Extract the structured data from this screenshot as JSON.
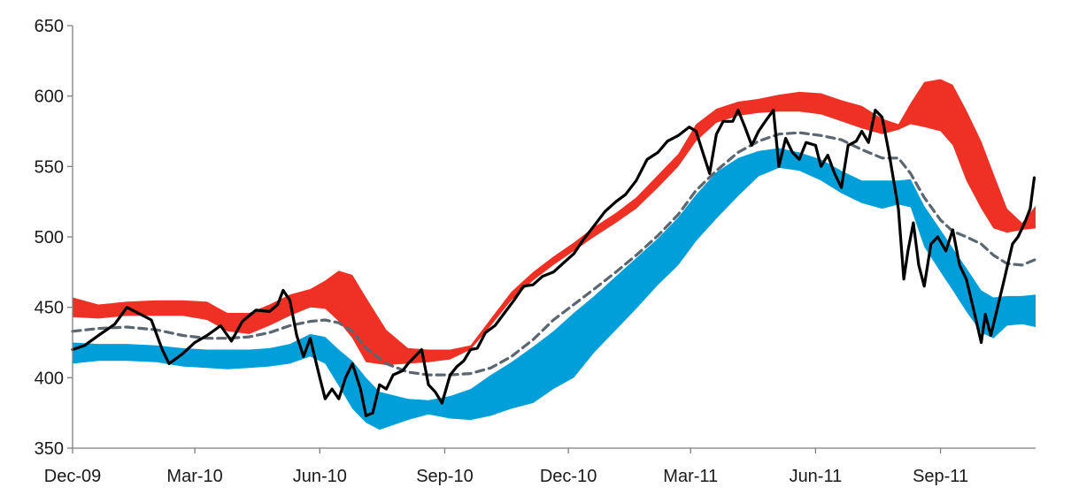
{
  "chart_data": {
    "type": "line",
    "title": "",
    "xlabel": "",
    "ylabel": "",
    "ylim": [
      350,
      650
    ],
    "yticks": [
      350,
      400,
      450,
      500,
      550,
      600,
      650
    ],
    "xlim": [
      "2009-12-01",
      "2011-11-10"
    ],
    "xticks": [
      {
        "date": "2009-12-01",
        "label": "Dec-09"
      },
      {
        "date": "2010-03-01",
        "label": "Mar-10"
      },
      {
        "date": "2010-06-01",
        "label": "Jun-10"
      },
      {
        "date": "2010-09-01",
        "label": "Sep-10"
      },
      {
        "date": "2010-12-01",
        "label": "Dec-10"
      },
      {
        "date": "2011-03-01",
        "label": "Mar-11"
      },
      {
        "date": "2011-06-01",
        "label": "Jun-11"
      },
      {
        "date": "2011-09-01",
        "label": "Sep-11"
      }
    ],
    "grid": false,
    "legend": "none",
    "colors": {
      "upper_band": "#ee3124",
      "lower_band": "#009fda",
      "moving_average": "#5b6670",
      "price": "#000000",
      "axis": "#7f7f7f"
    },
    "series": [
      {
        "role": "upper_band",
        "style": "filled band",
        "x": [
          "2009-12-01",
          "2009-12-20",
          "2010-01-10",
          "2010-02-01",
          "2010-02-20",
          "2010-03-10",
          "2010-03-25",
          "2010-04-10",
          "2010-04-25",
          "2010-05-10",
          "2010-05-25",
          "2010-06-05",
          "2010-06-15",
          "2010-06-25",
          "2010-07-05",
          "2010-07-20",
          "2010-08-05",
          "2010-08-20",
          "2010-09-05",
          "2010-09-20",
          "2010-10-05",
          "2010-10-20",
          "2010-11-05",
          "2010-11-20",
          "2010-12-05",
          "2010-12-20",
          "2011-01-05",
          "2011-01-20",
          "2011-02-05",
          "2011-02-20",
          "2011-03-05",
          "2011-03-20",
          "2011-04-05",
          "2011-04-20",
          "2011-05-05",
          "2011-05-20",
          "2011-06-05",
          "2011-06-20",
          "2011-07-05",
          "2011-07-20",
          "2011-08-01",
          "2011-08-10",
          "2011-08-20",
          "2011-09-01",
          "2011-09-10",
          "2011-09-20",
          "2011-10-01",
          "2011-10-10",
          "2011-10-20",
          "2011-10-31",
          "2011-11-10"
        ],
        "upper": [
          457,
          452,
          454,
          455,
          455,
          454,
          446,
          446,
          452,
          459,
          463,
          469,
          476,
          473,
          457,
          434,
          421,
          420,
          420,
          423,
          442,
          461,
          475,
          486,
          496,
          507,
          517,
          528,
          544,
          559,
          580,
          591,
          596,
          598,
          601,
          603,
          602,
          597,
          593,
          584,
          580,
          595,
          610,
          612,
          608,
          590,
          568,
          545,
          520,
          510,
          522
        ],
        "lower": [
          443,
          442,
          444,
          444,
          444,
          441,
          433,
          431,
          437,
          444,
          450,
          449,
          440,
          428,
          411,
          409,
          410,
          411,
          413,
          420,
          437,
          455,
          469,
          480,
          490,
          500,
          510,
          520,
          535,
          550,
          568,
          581,
          586,
          588,
          589,
          589,
          587,
          582,
          577,
          573,
          576,
          580,
          578,
          575,
          565,
          540,
          520,
          506,
          503,
          505,
          506
        ]
      },
      {
        "role": "lower_band",
        "style": "filled band",
        "x": [
          "2009-12-01",
          "2009-12-20",
          "2010-01-10",
          "2010-02-01",
          "2010-02-20",
          "2010-03-10",
          "2010-03-25",
          "2010-04-10",
          "2010-04-25",
          "2010-05-10",
          "2010-05-25",
          "2010-06-05",
          "2010-06-15",
          "2010-06-25",
          "2010-07-05",
          "2010-07-15",
          "2010-08-05",
          "2010-08-20",
          "2010-09-05",
          "2010-09-20",
          "2010-10-05",
          "2010-10-20",
          "2010-11-05",
          "2010-11-20",
          "2010-12-05",
          "2010-12-20",
          "2011-01-05",
          "2011-01-20",
          "2011-02-05",
          "2011-02-20",
          "2011-03-05",
          "2011-03-20",
          "2011-04-05",
          "2011-04-20",
          "2011-05-05",
          "2011-05-20",
          "2011-06-05",
          "2011-06-20",
          "2011-07-05",
          "2011-07-20",
          "2011-08-01",
          "2011-08-10",
          "2011-08-20",
          "2011-09-01",
          "2011-09-10",
          "2011-09-20",
          "2011-10-01",
          "2011-10-10",
          "2011-10-20",
          "2011-10-31",
          "2011-11-10"
        ],
        "upper": [
          425,
          424,
          424,
          423,
          421,
          420,
          420,
          420,
          421,
          424,
          431,
          429,
          420,
          412,
          400,
          390,
          385,
          384,
          387,
          392,
          402,
          411,
          422,
          433,
          446,
          458,
          472,
          485,
          499,
          514,
          530,
          546,
          556,
          561,
          563,
          560,
          555,
          547,
          540,
          540,
          540,
          541,
          522,
          505,
          492,
          478,
          462,
          457,
          458,
          458,
          459
        ],
        "lower": [
          410,
          412,
          412,
          411,
          408,
          407,
          406,
          407,
          408,
          410,
          415,
          410,
          394,
          378,
          368,
          363,
          370,
          374,
          371,
          370,
          373,
          378,
          382,
          392,
          400,
          418,
          434,
          449,
          466,
          480,
          497,
          513,
          529,
          543,
          549,
          547,
          540,
          531,
          524,
          520,
          523,
          521,
          493,
          475,
          462,
          447,
          432,
          428,
          437,
          438,
          436
        ]
      },
      {
        "role": "moving_average",
        "style": "dashed line",
        "x": [
          "2009-12-01",
          "2009-12-20",
          "2010-01-10",
          "2010-02-01",
          "2010-02-20",
          "2010-03-10",
          "2010-03-25",
          "2010-04-10",
          "2010-04-25",
          "2010-05-10",
          "2010-05-25",
          "2010-06-05",
          "2010-06-15",
          "2010-06-25",
          "2010-07-05",
          "2010-07-20",
          "2010-08-05",
          "2010-08-20",
          "2010-09-05",
          "2010-09-20",
          "2010-10-05",
          "2010-10-20",
          "2010-11-05",
          "2010-11-20",
          "2010-12-05",
          "2010-12-20",
          "2011-01-05",
          "2011-01-20",
          "2011-02-05",
          "2011-02-20",
          "2011-03-05",
          "2011-03-20",
          "2011-04-05",
          "2011-04-20",
          "2011-05-05",
          "2011-05-20",
          "2011-06-05",
          "2011-06-20",
          "2011-07-05",
          "2011-07-20",
          "2011-08-01",
          "2011-08-10",
          "2011-08-20",
          "2011-09-01",
          "2011-09-10",
          "2011-09-20",
          "2011-10-01",
          "2011-10-10",
          "2011-10-20",
          "2011-10-31",
          "2011-11-10"
        ],
        "values": [
          433,
          435,
          436,
          434,
          430,
          428,
          428,
          429,
          432,
          437,
          440,
          441,
          439,
          433,
          421,
          410,
          404,
          402,
          402,
          403,
          407,
          415,
          427,
          441,
          452,
          463,
          475,
          487,
          501,
          516,
          533,
          547,
          560,
          568,
          573,
          574,
          572,
          569,
          562,
          556,
          556,
          545,
          528,
          512,
          504,
          500,
          495,
          487,
          481,
          480,
          484
        ]
      },
      {
        "role": "price",
        "style": "solid line",
        "x": [
          "2009-12-01",
          "2009-12-10",
          "2009-12-20",
          "2010-01-01",
          "2010-01-10",
          "2010-01-20",
          "2010-01-28",
          "2010-02-05",
          "2010-02-10",
          "2010-02-20",
          "2010-03-01",
          "2010-03-10",
          "2010-03-20",
          "2010-03-28",
          "2010-04-05",
          "2010-04-15",
          "2010-04-25",
          "2010-05-01",
          "2010-05-05",
          "2010-05-10",
          "2010-05-15",
          "2010-05-20",
          "2010-05-25",
          "2010-06-01",
          "2010-06-05",
          "2010-06-10",
          "2010-06-15",
          "2010-06-20",
          "2010-06-25",
          "2010-07-01",
          "2010-07-05",
          "2010-07-10",
          "2010-07-15",
          "2010-07-20",
          "2010-07-25",
          "2010-08-01",
          "2010-08-05",
          "2010-08-10",
          "2010-08-15",
          "2010-08-20",
          "2010-08-25",
          "2010-08-30",
          "2010-09-05",
          "2010-09-10",
          "2010-09-15",
          "2010-09-20",
          "2010-09-25",
          "2010-10-01",
          "2010-10-08",
          "2010-10-15",
          "2010-10-22",
          "2010-10-29",
          "2010-11-05",
          "2010-11-12",
          "2010-11-20",
          "2010-11-28",
          "2010-12-05",
          "2010-12-12",
          "2010-12-20",
          "2010-12-28",
          "2011-01-05",
          "2011-01-12",
          "2011-01-20",
          "2011-01-28",
          "2011-02-05",
          "2011-02-12",
          "2011-02-20",
          "2011-02-28",
          "2011-03-05",
          "2011-03-10",
          "2011-03-15",
          "2011-03-20",
          "2011-03-25",
          "2011-04-01",
          "2011-04-05",
          "2011-04-10",
          "2011-04-15",
          "2011-04-20",
          "2011-04-25",
          "2011-05-01",
          "2011-05-05",
          "2011-05-10",
          "2011-05-15",
          "2011-05-20",
          "2011-05-25",
          "2011-06-01",
          "2011-06-05",
          "2011-06-10",
          "2011-06-15",
          "2011-06-20",
          "2011-06-25",
          "2011-07-01",
          "2011-07-05",
          "2011-07-10",
          "2011-07-15",
          "2011-07-20",
          "2011-07-25",
          "2011-08-01",
          "2011-08-05",
          "2011-08-08",
          "2011-08-12",
          "2011-08-16",
          "2011-08-20",
          "2011-08-25",
          "2011-08-30",
          "2011-09-05",
          "2011-09-10",
          "2011-09-15",
          "2011-09-20",
          "2011-09-25",
          "2011-10-01",
          "2011-10-04",
          "2011-10-08",
          "2011-10-13",
          "2011-10-18",
          "2011-10-24",
          "2011-10-28",
          "2011-11-02",
          "2011-11-06",
          "2011-11-09"
        ],
        "values": [
          420,
          423,
          430,
          438,
          450,
          445,
          441,
          420,
          410,
          417,
          425,
          430,
          437,
          426,
          440,
          448,
          447,
          452,
          462,
          455,
          430,
          415,
          428,
          400,
          385,
          392,
          385,
          400,
          410,
          392,
          373,
          375,
          395,
          392,
          402,
          405,
          410,
          415,
          420,
          395,
          390,
          382,
          402,
          408,
          412,
          420,
          421,
          432,
          437,
          446,
          455,
          465,
          466,
          472,
          475,
          482,
          488,
          498,
          508,
          518,
          525,
          530,
          540,
          555,
          560,
          568,
          572,
          578,
          575,
          560,
          545,
          573,
          582,
          582,
          590,
          578,
          565,
          575,
          582,
          590,
          550,
          570,
          560,
          555,
          567,
          565,
          550,
          558,
          545,
          535,
          565,
          568,
          575,
          567,
          590,
          585,
          560,
          520,
          470,
          490,
          510,
          480,
          465,
          495,
          500,
          490,
          505,
          480,
          470,
          450,
          425,
          445,
          430,
          450,
          470,
          495,
          500,
          510,
          520,
          542
        ]
      }
    ]
  }
}
